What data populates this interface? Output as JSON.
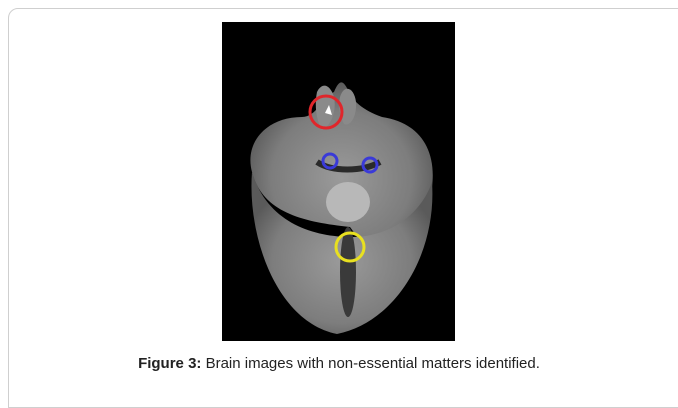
{
  "figure": {
    "label": "Figure 3:",
    "caption": "Brain images with non-essential matters identified."
  }
}
